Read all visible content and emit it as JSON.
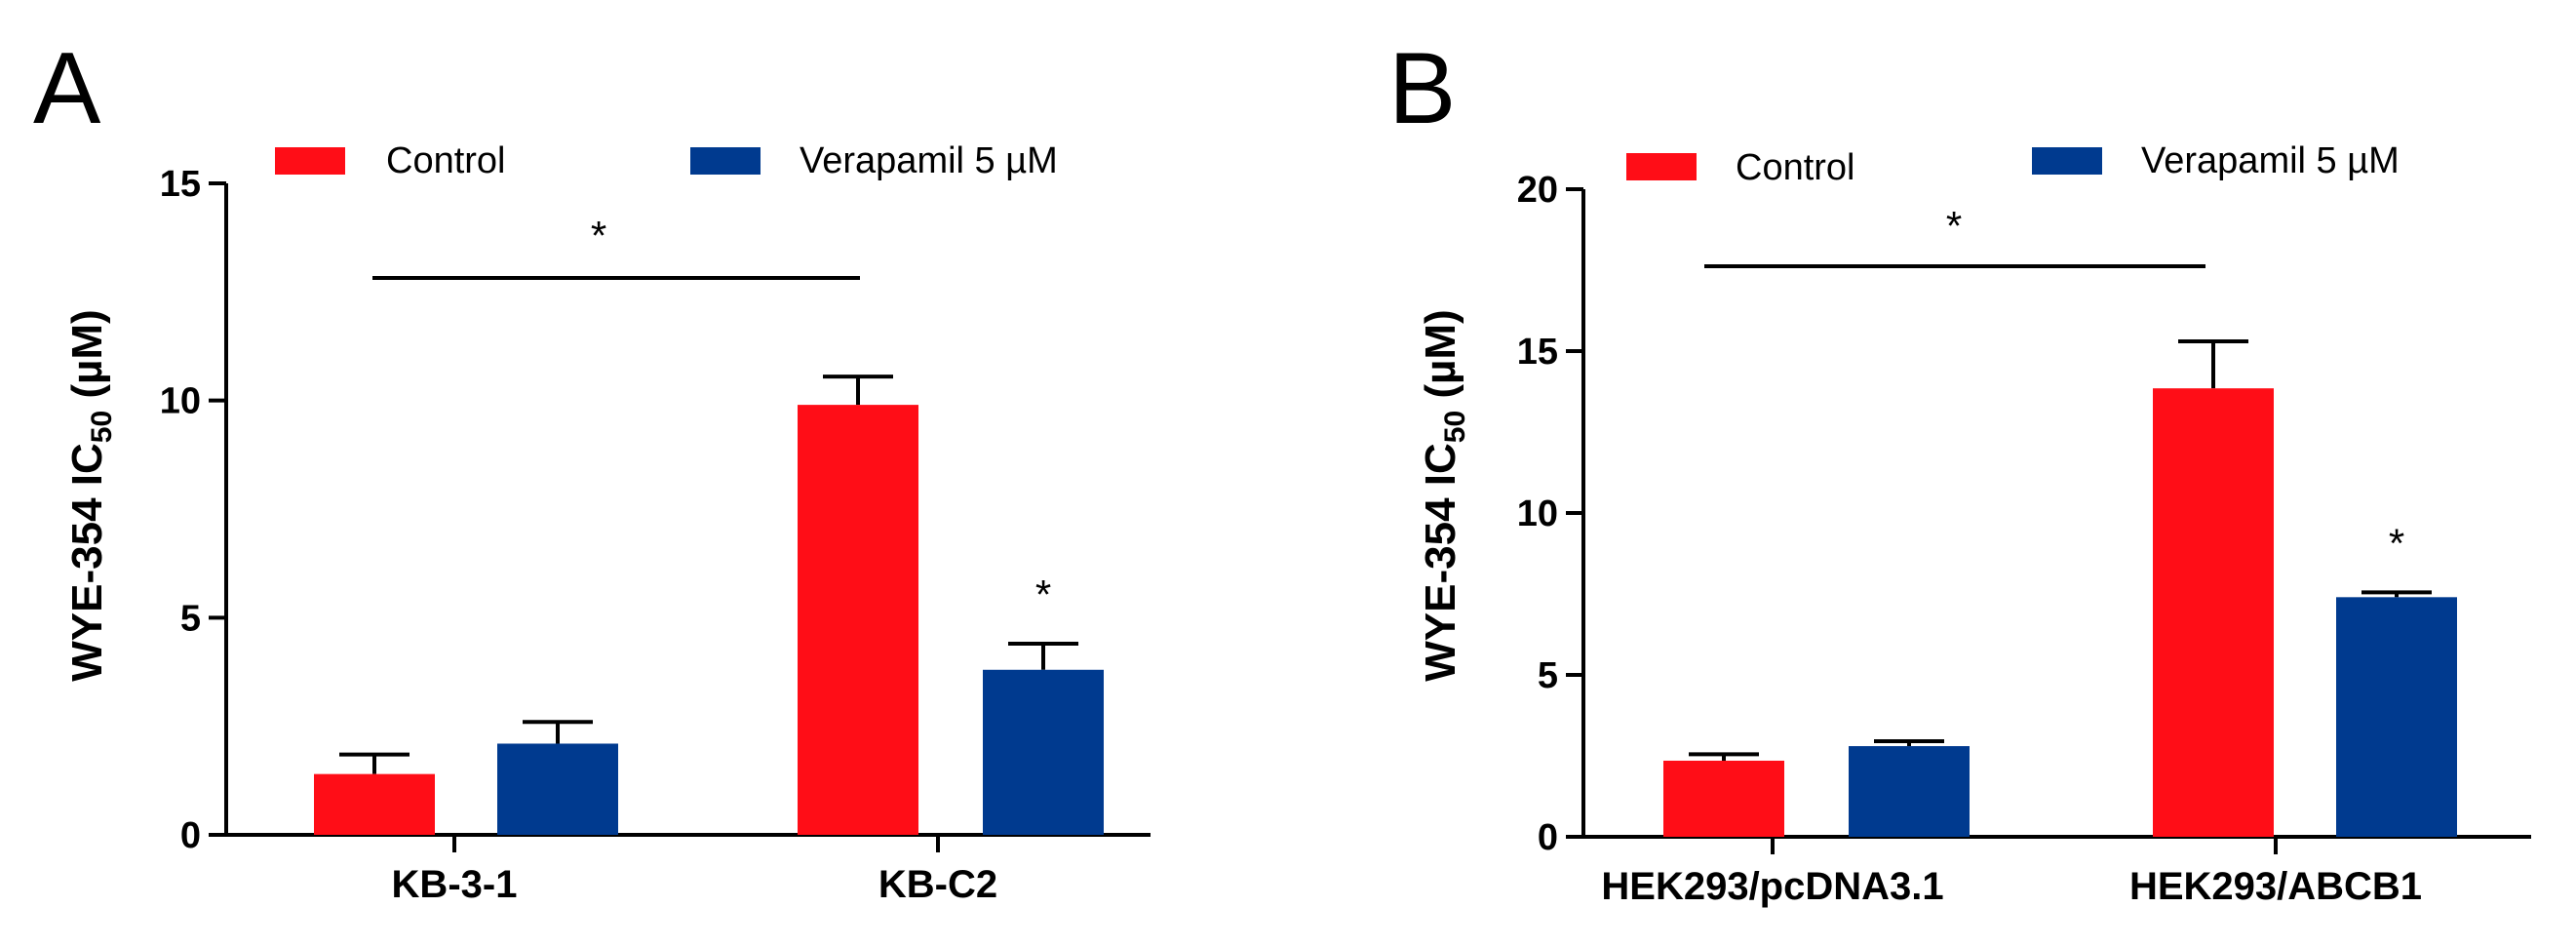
{
  "chart_data": [
    {
      "type": "bar",
      "panel": "A",
      "title": "",
      "xlabel": "",
      "ylabel_main": "WYE-354 IC",
      "ylabel_sub": "50",
      "ylabel_unit": " (µM)",
      "ylim": [
        0,
        15
      ],
      "yticks": [
        "0",
        "5",
        "10",
        "15"
      ],
      "categories": [
        "KB-3-1",
        "KB-C2"
      ],
      "series": [
        {
          "name": "Control",
          "color": "#ff0d17",
          "values": [
            1.4,
            9.9
          ],
          "errors": [
            0.45,
            0.65
          ]
        },
        {
          "name": "Verapamil 5 µM",
          "color": "#003a8f",
          "values": [
            2.1,
            3.8
          ],
          "errors": [
            0.5,
            0.6
          ]
        }
      ],
      "significance": {
        "bracket_label": "*",
        "bar_label": "*"
      },
      "legend": "top"
    },
    {
      "type": "bar",
      "panel": "B",
      "title": "",
      "xlabel": "",
      "ylabel_main": "WYE-354 IC",
      "ylabel_sub": "50",
      "ylabel_unit": " (µM)",
      "ylim": [
        0,
        20
      ],
      "yticks": [
        "0",
        "5",
        "10",
        "15",
        "20"
      ],
      "categories": [
        "HEK293/pcDNA3.1",
        "HEK293/ABCB1"
      ],
      "series": [
        {
          "name": "Control",
          "color": "#ff0d17",
          "values": [
            2.35,
            13.85
          ],
          "errors": [
            0.2,
            1.45
          ]
        },
        {
          "name": "Verapamil 5 µM",
          "color": "#003a8f",
          "values": [
            2.8,
            7.4
          ],
          "errors": [
            0.15,
            0.15
          ]
        }
      ],
      "significance": {
        "bracket_label": "*",
        "bar_label": "*"
      },
      "legend": "top"
    }
  ]
}
